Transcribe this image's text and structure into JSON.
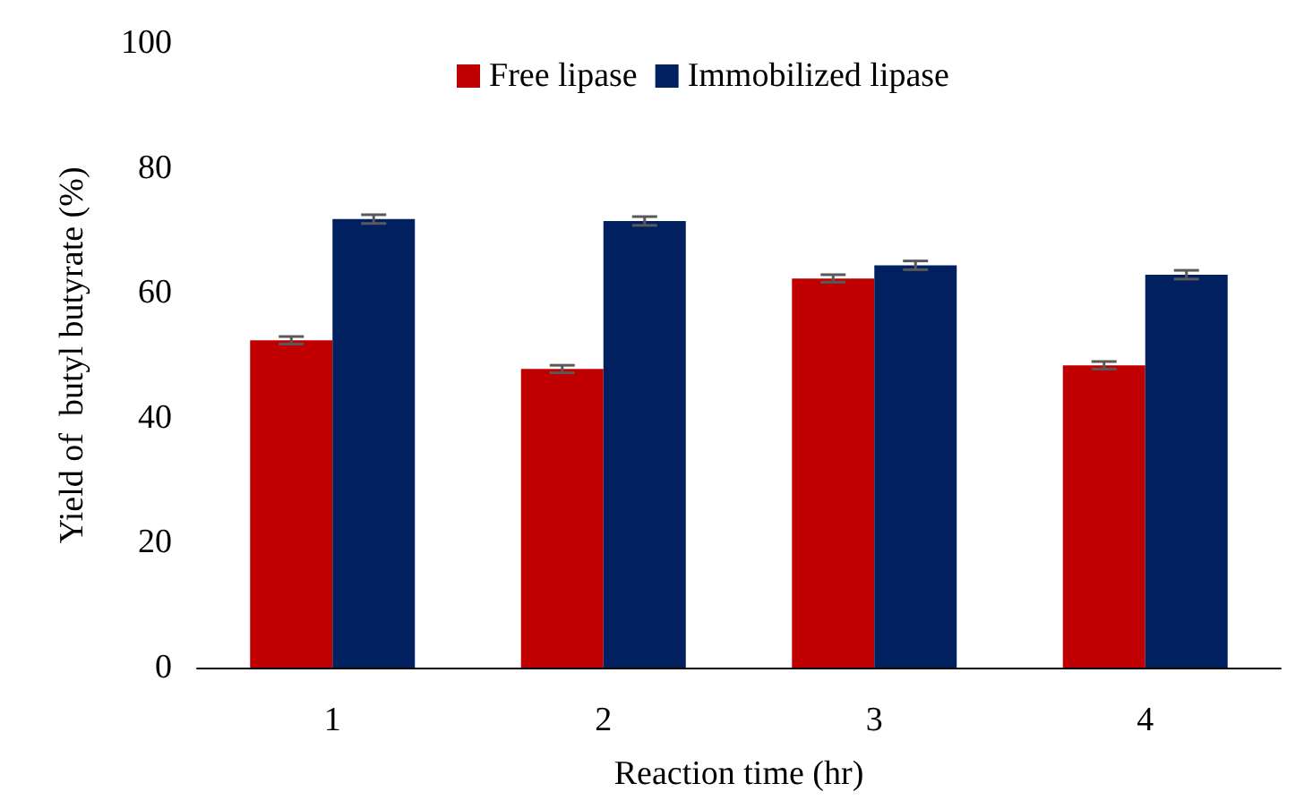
{
  "chart_data": {
    "type": "bar",
    "xlabel": "Reaction time (hr)",
    "ylabel": "Yield of  butyl butyrate (%)",
    "categories": [
      "1",
      "2",
      "3",
      "4"
    ],
    "series": [
      {
        "name": "Free lipase",
        "color": "#c00000",
        "values": [
          52.4,
          47.8,
          62.3,
          48.4
        ],
        "errors": [
          0.6,
          0.6,
          0.6,
          0.6
        ]
      },
      {
        "name": "Immobilized lipase",
        "color": "#002060",
        "values": [
          71.8,
          71.5,
          64.4,
          62.9
        ],
        "errors": [
          0.7,
          0.7,
          0.7,
          0.7
        ]
      }
    ],
    "ylim": [
      0,
      100
    ],
    "yticks": [
      0,
      20,
      40,
      60,
      80,
      100
    ],
    "grid": false,
    "legend": "top"
  }
}
